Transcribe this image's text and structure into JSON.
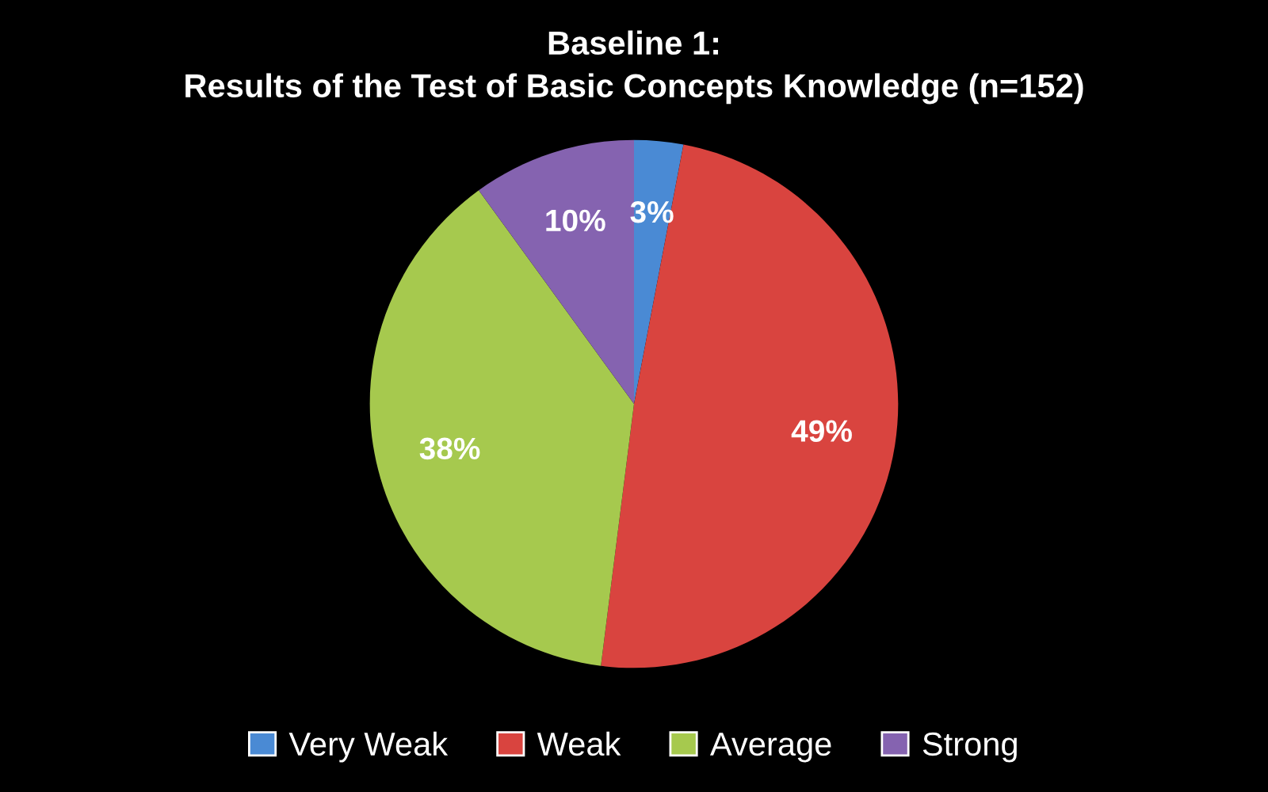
{
  "chart_data": {
    "type": "pie",
    "title": "Baseline 1:\nResults of the Test of Basic Concepts Knowledge (n=152)",
    "categories": [
      "Very Weak",
      "Weak",
      "Average",
      "Strong"
    ],
    "values": [
      3,
      49,
      38,
      10
    ],
    "colors": [
      "#4a8ad4",
      "#d9443f",
      "#a6c94e",
      "#8563b0"
    ],
    "value_labels": [
      "3%",
      "49%",
      "38%",
      "10%"
    ],
    "legend": "bottom"
  }
}
